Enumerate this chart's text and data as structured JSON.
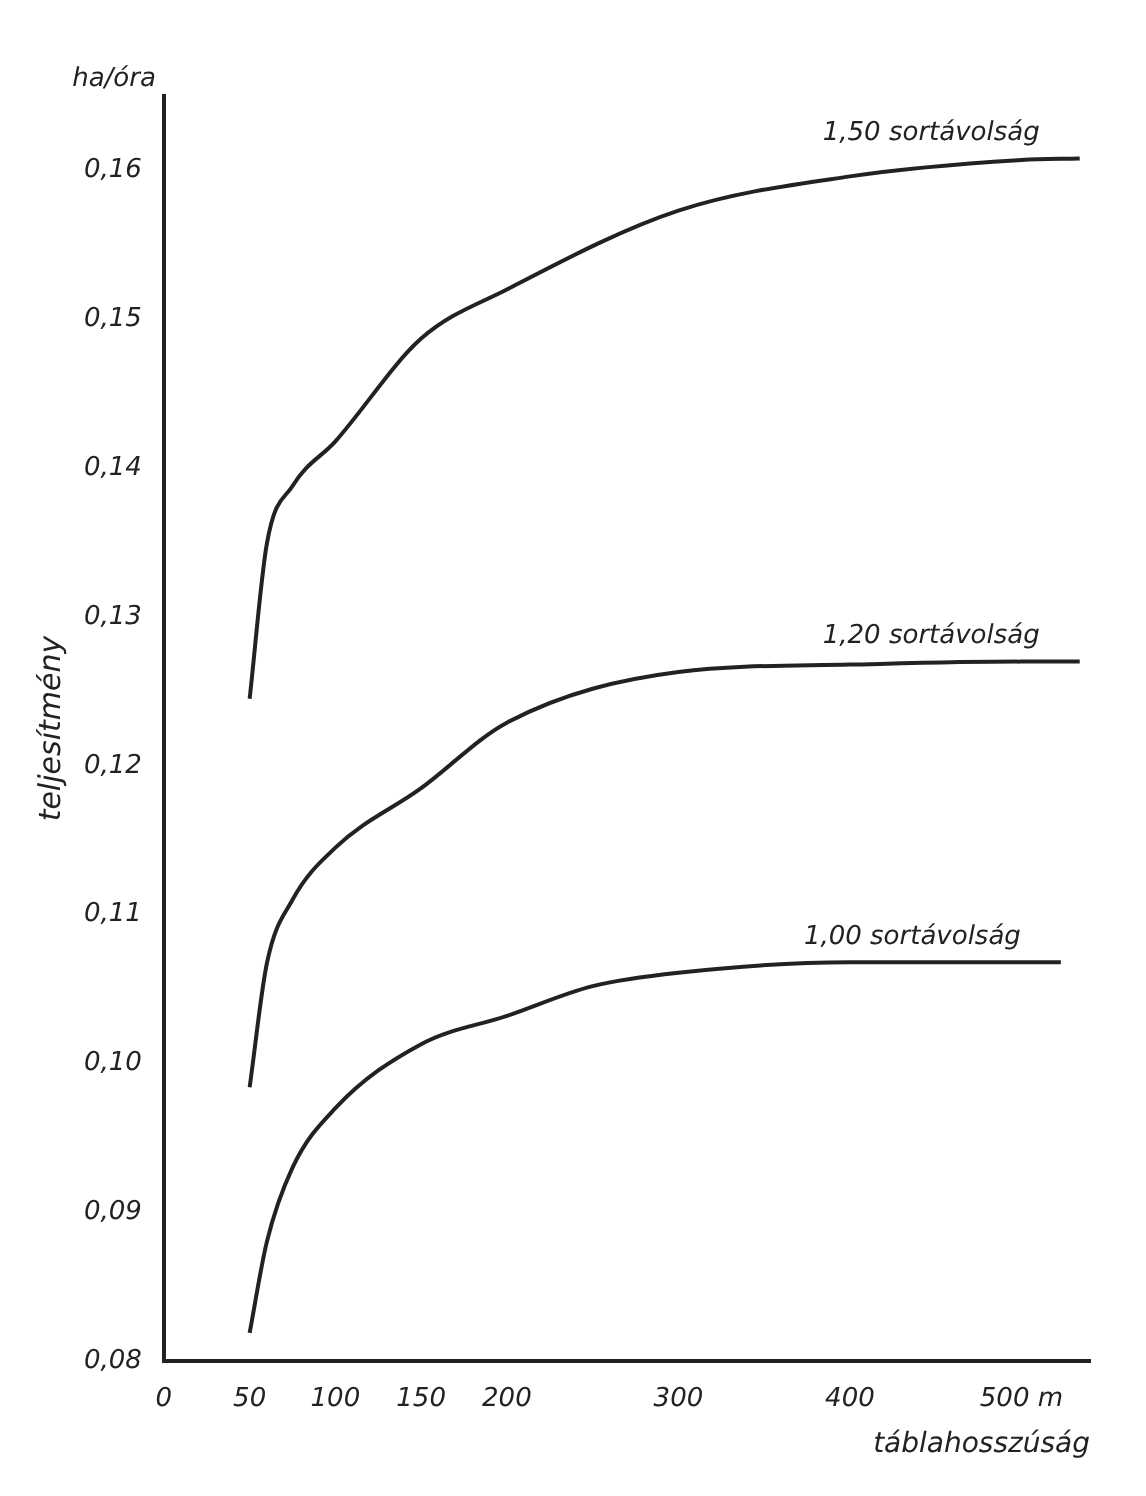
{
  "chart_data": {
    "type": "line",
    "xlabel": "táblahosszúság",
    "ylabel": "teljesítmény",
    "annotations": [
      "ha/óra"
    ],
    "xlim": [
      0,
      540
    ],
    "ylim": [
      0.08,
      0.165
    ],
    "xticks": [
      0,
      50,
      100,
      150,
      200,
      300,
      400,
      {
        "value": 500,
        "label": "500 m"
      }
    ],
    "yticks": [
      {
        "value": 0.08,
        "label": "0,08"
      },
      {
        "value": 0.09,
        "label": "0,09"
      },
      {
        "value": 0.1,
        "label": "0,10"
      },
      {
        "value": 0.11,
        "label": "0,11"
      },
      {
        "value": 0.12,
        "label": "0,12"
      },
      {
        "value": 0.13,
        "label": "0,13"
      },
      {
        "value": 0.14,
        "label": "0,14"
      },
      {
        "value": 0.15,
        "label": "0,15"
      },
      {
        "value": 0.16,
        "label": "0,16"
      }
    ],
    "grid": false,
    "legend": false,
    "marker": "none",
    "line_style": "solid",
    "series": [
      {
        "name": "1,50 sortávolság",
        "color": "#222222",
        "x": [
          50,
          60,
          75,
          100,
          150,
          200,
          300,
          400,
          500,
          534
        ],
        "values": [
          0.1245,
          0.1349,
          0.1388,
          0.1418,
          0.1487,
          0.152,
          0.1573,
          0.1596,
          0.1607,
          0.1608
        ]
      },
      {
        "name": "1,20 sortávolság",
        "color": "#222222",
        "x": [
          50,
          60,
          75,
          100,
          150,
          200,
          300,
          400,
          500,
          534
        ],
        "values": [
          0.0984,
          0.1067,
          0.111,
          0.1145,
          0.1185,
          0.1229,
          0.1263,
          0.1268,
          0.127,
          0.127
        ]
      },
      {
        "name": "1,00 sortávolság",
        "color": "#222222",
        "x": [
          50,
          60,
          75,
          100,
          150,
          200,
          250,
          300,
          400,
          500,
          523
        ],
        "values": [
          0.0819,
          0.088,
          0.093,
          0.097,
          0.1013,
          0.1032,
          0.1052,
          0.1061,
          0.1068,
          0.1068,
          0.1068
        ]
      }
    ]
  }
}
